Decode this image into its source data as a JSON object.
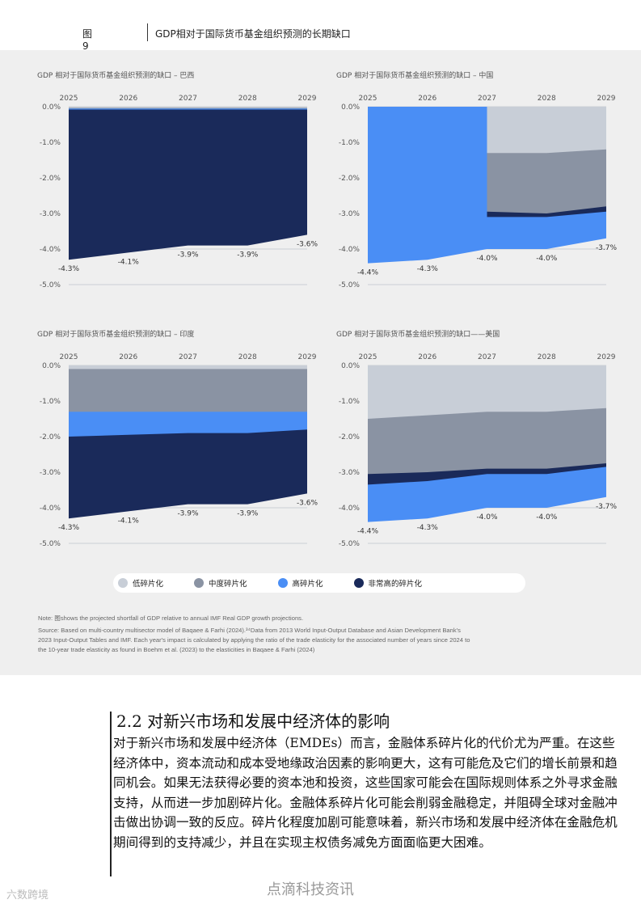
{
  "figure": {
    "number": "图9",
    "title": "GDP相对于国际货币基金组织预测的长期缺口"
  },
  "legend": [
    {
      "label": "低碎片化",
      "color": "#c8ced7"
    },
    {
      "label": "中度碎片化",
      "color": "#8a93a3"
    },
    {
      "label": "高碎片化",
      "color": "#4a8ef5"
    },
    {
      "label": "非常高的碎片化",
      "color": "#1a2a5a"
    }
  ],
  "chart_data": [
    {
      "type": "area",
      "title": "GDP 相对于国际货币基金组织预测的缺口 – 巴西",
      "x": [
        "2025",
        "2026",
        "2027",
        "2028",
        "2029"
      ],
      "yticks": [
        "0.0%",
        "-1.0%",
        "-2.0%",
        "-3.0%",
        "-4.0%",
        "-5.0%"
      ],
      "ylim": [
        -5,
        0
      ],
      "bands": [
        {
          "name": "低碎片化",
          "values": [
            -0.03,
            -0.03,
            -0.03,
            -0.03,
            -0.03
          ]
        },
        {
          "name": "中度碎片化",
          "values": [
            -0.05,
            -0.05,
            -0.05,
            -0.05,
            -0.05
          ]
        },
        {
          "name": "高碎片化",
          "values": [
            -0.08,
            -0.08,
            -0.08,
            -0.08,
            -0.08
          ]
        },
        {
          "name": "非常高的碎片化",
          "values": [
            -4.3,
            -4.1,
            -3.9,
            -3.9,
            -3.6
          ]
        }
      ],
      "data_labels": [
        "-4.3%",
        "-4.1%",
        "-3.9%",
        "-3.9%",
        "-3.6%"
      ]
    },
    {
      "type": "area",
      "title": "GDP 相对于国际货币基金组织预测的缺口 – 中国",
      "x": [
        "2025",
        "2026",
        "2027",
        "2028",
        "2029"
      ],
      "yticks": [
        "0.0%",
        "-1.0%",
        "-2.0%",
        "-3.0%",
        "-4.0%",
        "-5.0%"
      ],
      "ylim": [
        -5,
        0
      ],
      "bands": [
        {
          "name": "低碎片化",
          "values": [
            null,
            null,
            -1.3,
            -1.3,
            -1.2
          ]
        },
        {
          "name": "中度碎片化",
          "values": [
            null,
            null,
            -2.95,
            -3.0,
            -2.8
          ]
        },
        {
          "name": "高碎片化",
          "values": [
            -4.4,
            -4.3,
            -4.0,
            -4.0,
            -3.7
          ]
        },
        {
          "name": "非常高的碎片化",
          "values": [
            null,
            null,
            -3.1,
            -3.1,
            -2.95
          ]
        }
      ],
      "data_labels": [
        "-4.4%",
        "-4.3%",
        "-4.0%",
        "-4.0%",
        "-3.7%"
      ]
    },
    {
      "type": "area",
      "title": "GDP 相对于国际货币基金组织预测的缺口 – 印度",
      "x": [
        "2025",
        "2026",
        "2027",
        "2028",
        "2029"
      ],
      "yticks": [
        "0.0%",
        "-1.0%",
        "-2.0%",
        "-3.0%",
        "-4.0%",
        "-5.0%"
      ],
      "ylim": [
        -5,
        0
      ],
      "bands": [
        {
          "name": "低碎片化",
          "values": [
            -0.1,
            -0.1,
            -0.1,
            -0.1,
            -0.1
          ]
        },
        {
          "name": "中度碎片化",
          "values": [
            -1.3,
            -1.3,
            -1.3,
            -1.3,
            -1.3
          ]
        },
        {
          "name": "高碎片化",
          "values": [
            -2.0,
            -1.95,
            -1.9,
            -1.9,
            -1.8
          ]
        },
        {
          "name": "非常高的碎片化",
          "values": [
            -4.3,
            -4.1,
            -3.9,
            -3.9,
            -3.6
          ]
        }
      ],
      "data_labels": [
        "-4.3%",
        "-4.1%",
        "-3.9%",
        "-3.9%",
        "-3.6%"
      ]
    },
    {
      "type": "area",
      "title": "GDP 相对于国际货币基金组织预测的缺口——美国",
      "x": [
        "2025",
        "2026",
        "2027",
        "2028",
        "2029"
      ],
      "yticks": [
        "0.0%",
        "-1.0%",
        "-2.0%",
        "-3.0%",
        "-4.0%",
        "-5.0%"
      ],
      "ylim": [
        -5,
        0
      ],
      "bands": [
        {
          "name": "低碎片化",
          "values": [
            -1.5,
            -1.4,
            -1.3,
            -1.3,
            -1.2
          ]
        },
        {
          "name": "中度碎片化",
          "values": [
            -3.05,
            -3.0,
            -2.9,
            -2.9,
            -2.75
          ]
        },
        {
          "name": "非常高的碎片化",
          "values": [
            -3.35,
            -3.25,
            -3.05,
            -3.05,
            -2.85
          ]
        },
        {
          "name": "高碎片化",
          "values": [
            -4.4,
            -4.3,
            -4.0,
            -4.0,
            -3.7
          ]
        }
      ],
      "data_labels": [
        "-4.4%",
        "-4.3%",
        "-4.0%",
        "-4.0%",
        "-3.7%"
      ]
    }
  ],
  "notes": {
    "note": "Note: 图shows the projected shortfall of GDP relative to annual IMF Real GDP growth projections.",
    "source1": "Source: Based on multi-country multisector model of Baqaee & Farhi (2024).³⁴Data from 2013 World Input-Output Database and Asian Development Bank's",
    "source2": "2023 Input-Output Tables and IMF. Each year's impact is calculated by applying the ratio of the trade elasticity for the associated number of years since 2024  to",
    "source3": "the 10-year trade elasticity as found in Boehm et al. (2023) to the elasticities in Baqaee & Farhi (2024)"
  },
  "section": {
    "heading": "2.2  对新兴市场和发展中经济体的影响",
    "body": "对于新兴市场和发展中经济体（EMDEs）而言，金融体系碎片化的代价尤为严重。在这些经济体中，资本流动和成本受地缘政治因素的影响更大，这有可能危及它们的增长前景和趋同机会。如果无法获得必要的资本池和投资，这些国家可能会在国际规则体系之外寻求金融支持，从而进一步加剧碎片化。金融体系碎片化可能会削弱金融稳定，并阻碍全球对金融冲击做出协调一致的反应。碎片化程度加剧可能意味着，新兴市场和发展中经济体在金融危机期间得到的支持减少，并且在实现主权债务减免方面面临更大困难。"
  },
  "footer": {
    "watermark_left": "六数跨境",
    "watermark_mid": "点滴科技资讯"
  }
}
